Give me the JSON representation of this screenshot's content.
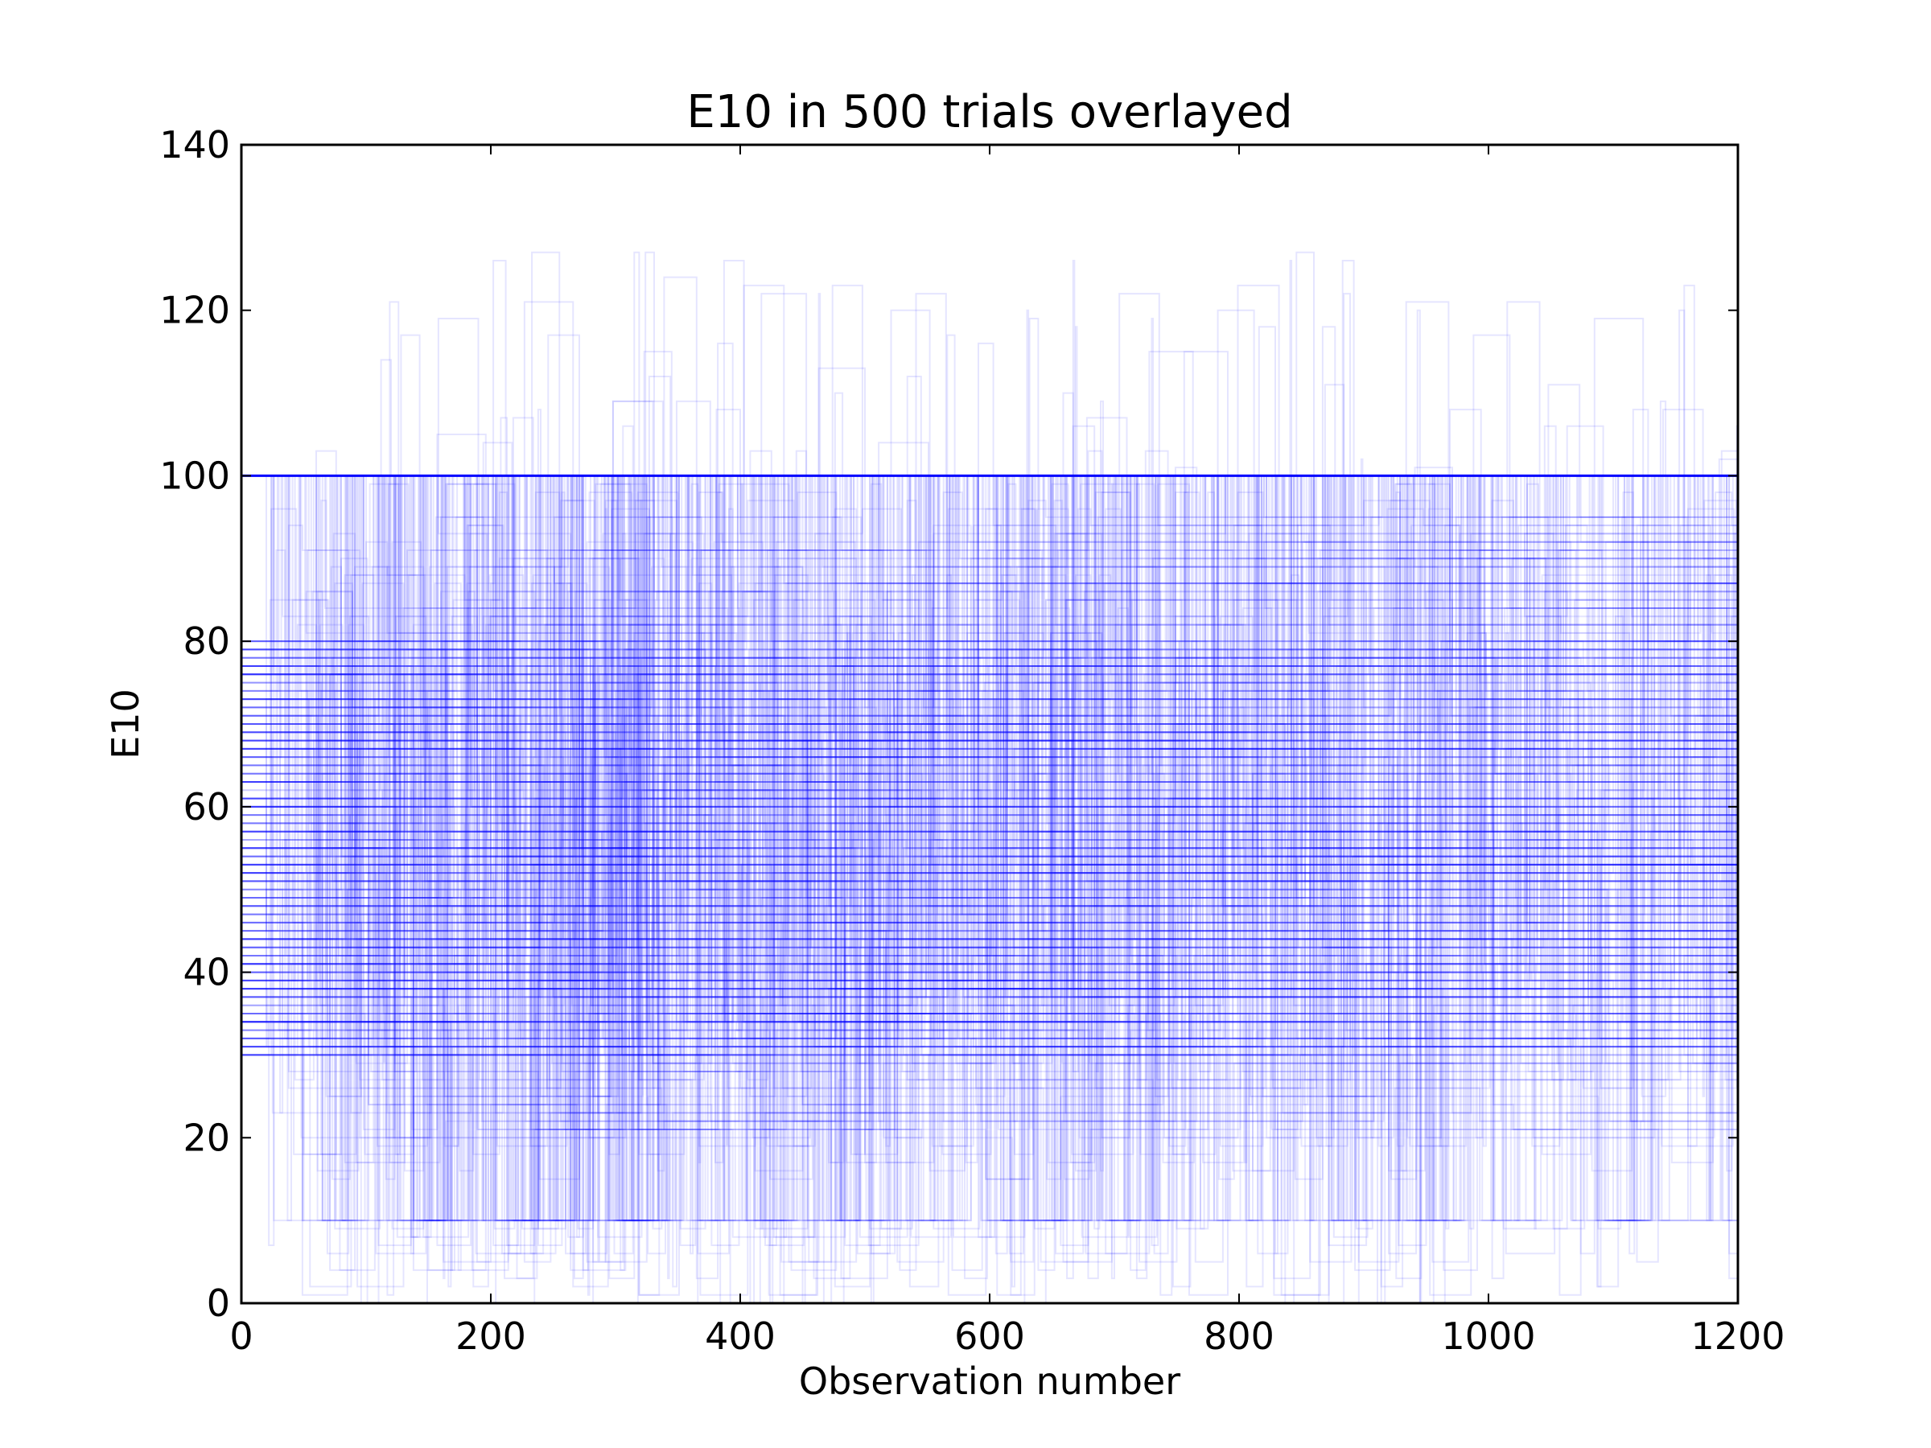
{
  "chart_data": {
    "type": "line",
    "title": "E10 in 500 trials overlayed",
    "xlabel": "Observation number",
    "ylabel": "E10",
    "xlim": [
      0,
      1200
    ],
    "ylim": [
      0,
      140
    ],
    "xticks": [
      0,
      200,
      400,
      600,
      800,
      1000,
      1200
    ],
    "yticks": [
      0,
      20,
      40,
      60,
      80,
      100,
      120,
      140
    ],
    "grid": false,
    "legend": "none",
    "series_count": 500,
    "line_color": "#0000ff",
    "line_alpha": 0.1,
    "drawstyle": "steps",
    "x_step": 1,
    "typical_range": [
      0,
      100
    ],
    "cap_level": 100,
    "floor_level": 10,
    "dense_band": [
      30,
      80
    ],
    "outlier_max": 127
  }
}
